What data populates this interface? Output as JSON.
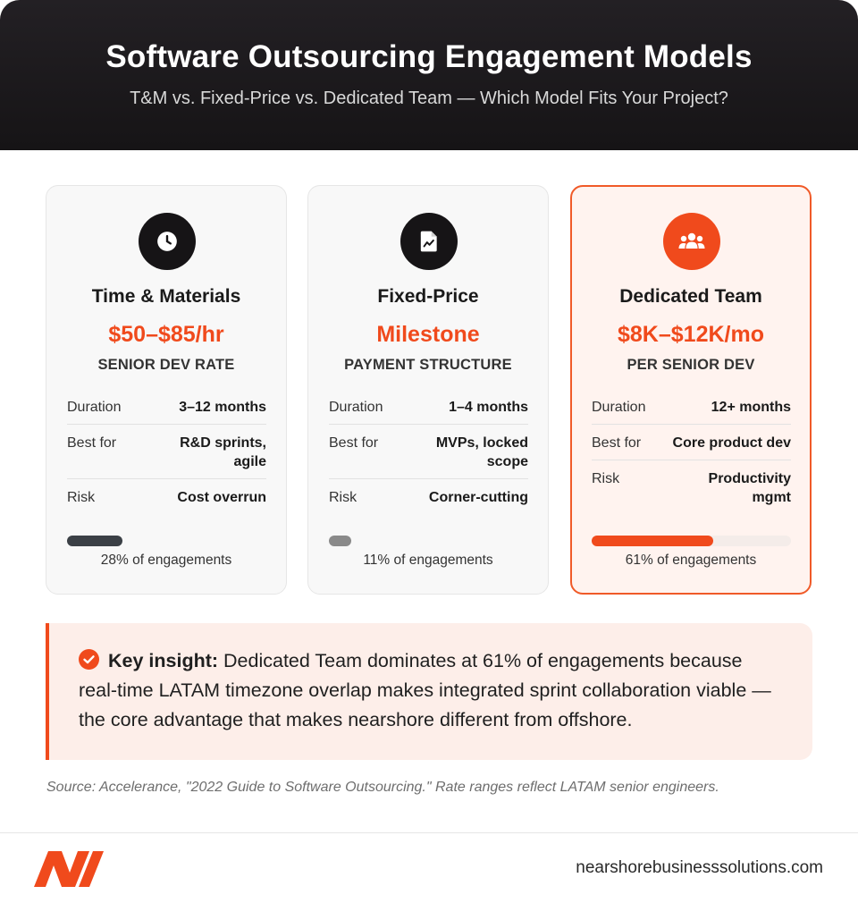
{
  "header": {
    "title": "Software Outsourcing Engagement Models",
    "subtitle": "T&M vs. Fixed-Price vs. Dedicated Team — Which Model Fits Your Project?"
  },
  "cards": [
    {
      "icon": "clock-icon",
      "title": "Time & Materials",
      "price": "$50–$85/hr",
      "price_sub": "SENIOR DEV RATE",
      "rows": [
        {
          "label": "Duration",
          "value": "3–12 months"
        },
        {
          "label": "Best for",
          "value": "R&D sprints, agile"
        },
        {
          "label": "Risk",
          "value": "Cost overrun"
        }
      ],
      "share": 28,
      "share_label": "28% of engagements"
    },
    {
      "icon": "document-icon",
      "title": "Fixed-Price",
      "price": "Milestone",
      "price_sub": "PAYMENT STRUCTURE",
      "rows": [
        {
          "label": "Duration",
          "value": "1–4 months"
        },
        {
          "label": "Best for",
          "value": "MVPs, locked scope"
        },
        {
          "label": "Risk",
          "value": "Corner-cutting"
        }
      ],
      "share": 11,
      "share_label": "11% of engagements"
    },
    {
      "icon": "team-icon",
      "title": "Dedicated Team",
      "price": "$8K–$12K/mo",
      "price_sub": "PER SENIOR DEV",
      "rows": [
        {
          "label": "Duration",
          "value": "12+ months"
        },
        {
          "label": "Best for",
          "value": "Core product dev"
        },
        {
          "label": "Risk",
          "value": "Productivity mgmt"
        }
      ],
      "share": 61,
      "share_label": "61% of engagements"
    }
  ],
  "insight": {
    "lead": "Key insight:",
    "text": "Dedicated Team dominates at 61% of engagements because real-time LATAM timezone overlap makes integrated sprint collaboration viable — the core advantage that makes nearshore different from offshore."
  },
  "source": "Source: Accelerance, \"2022 Guide to Software Outsourcing.\" Rate ranges reflect LATAM senior engineers.",
  "footer": {
    "site": "nearshorebusinesssolutions.com"
  },
  "colors": {
    "accent": "#f04a1c",
    "dark": "#161416"
  }
}
